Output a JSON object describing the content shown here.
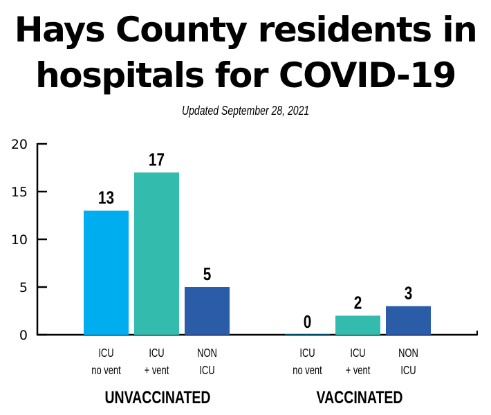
{
  "header": {
    "title_line1": "Hays County residents in",
    "title_line2": "hospitals for COVID-19",
    "subtitle": "Updated September 28, 2021"
  },
  "chart_data": {
    "type": "bar",
    "title": "Hays County residents in hospitals for COVID-19",
    "subtitle": "Updated September 28, 2021",
    "xlabel": "",
    "ylabel": "",
    "ylim": [
      0,
      20
    ],
    "yticks": [
      "0",
      "5",
      "10",
      "15",
      "20"
    ],
    "groups": [
      {
        "name": "UNVACCINATED",
        "categories": [
          {
            "line1": "ICU",
            "line2": "no vent"
          },
          {
            "line1": "ICU",
            "line2": "+ vent"
          },
          {
            "line1": "NON",
            "line2": "ICU"
          }
        ],
        "values": [
          13,
          17,
          5
        ],
        "labels": [
          "13",
          "17",
          "5"
        ]
      },
      {
        "name": "VACCINATED",
        "categories": [
          {
            "line1": "ICU",
            "line2": "no vent"
          },
          {
            "line1": "ICU",
            "line2": "+ vent"
          },
          {
            "line1": "NON",
            "line2": "ICU"
          }
        ],
        "values": [
          0,
          2,
          3
        ],
        "labels": [
          "0",
          "2",
          "3"
        ]
      }
    ],
    "colors": [
      "#00aeef",
      "#33bbad",
      "#2b5ca8"
    ],
    "grid": false,
    "legend": "none"
  }
}
